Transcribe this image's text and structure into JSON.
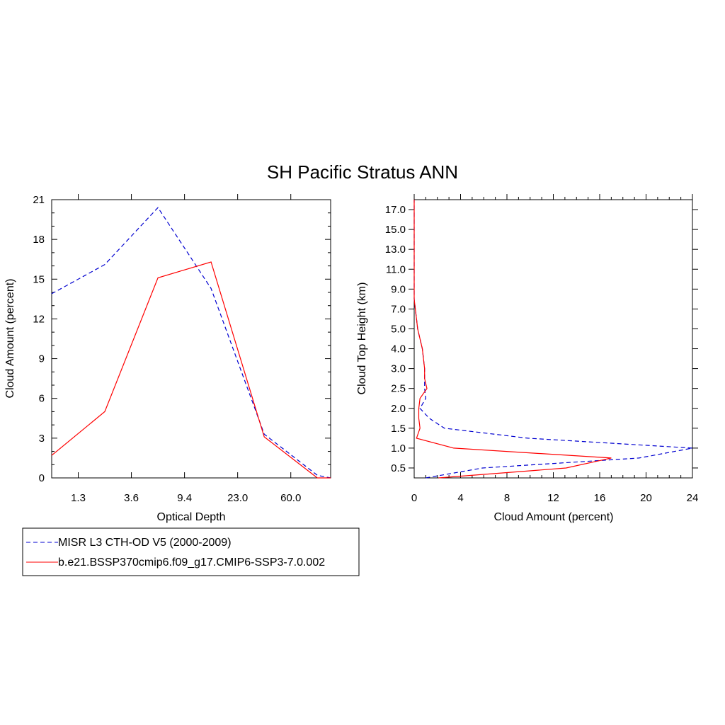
{
  "title": "SH Pacific Stratus ANN",
  "colors": {
    "obs": "#0000d0",
    "model": "#ff0000",
    "axis": "#000000"
  },
  "legend": {
    "placement": "bottom-left",
    "entries": [
      {
        "label": "MISR L3 CTH-OD V5 (2000-2009)",
        "style": "dashed",
        "color": "#0000d0"
      },
      {
        "label": "b.e21.BSSP370cmip6.f09_g17.CMIP6-SSP3-7.0.002",
        "style": "solid",
        "color": "#ff0000"
      }
    ]
  },
  "chart_data": [
    {
      "type": "line",
      "xlabel": "Optical Depth",
      "ylabel": "Cloud Amount (percent)",
      "xlim": [
        0,
        5.25
      ],
      "ylim": [
        0,
        21
      ],
      "x_tick_positions": [
        0.5,
        1.5,
        2.5,
        3.5,
        4.5
      ],
      "x_tick_labels": [
        "1.3",
        "3.6",
        "9.4",
        "23.0",
        "60.0"
      ],
      "y_ticks": [
        0,
        3,
        6,
        9,
        12,
        15,
        18,
        21
      ],
      "x_bins": [
        0,
        1,
        2,
        3,
        4,
        5,
        5.25
      ],
      "series": [
        {
          "name": "MISR L3 CTH-OD V5 (2000-2009)",
          "style": "dashed",
          "color": "#0000d0",
          "values": [
            13.9,
            16.1,
            20.4,
            14.3,
            3.3,
            0.2,
            0.0
          ]
        },
        {
          "name": "b.e21.BSSP370cmip6.f09_g17.CMIP6-SSP3-7.0.002",
          "style": "solid",
          "color": "#ff0000",
          "values": [
            1.7,
            5.0,
            15.1,
            16.3,
            3.1,
            0.0,
            0.0
          ]
        }
      ]
    },
    {
      "type": "line",
      "orientation": "horizontal",
      "xlabel": "Cloud Amount (percent)",
      "ylabel": "Cloud Top Height (km)",
      "xlim": [
        0,
        24
      ],
      "ylim": [
        0,
        14
      ],
      "x_ticks": [
        0,
        4,
        8,
        12,
        16,
        20,
        24
      ],
      "y_tick_positions": [
        0.5,
        1.5,
        2.5,
        3.5,
        4.5,
        5.5,
        6.5,
        7.5,
        8.5,
        9.5,
        10.5,
        11.5,
        12.5,
        13.5
      ],
      "y_tick_labels": [
        "0.5",
        "1.0",
        "1.5",
        "2.0",
        "2.5",
        "3.0",
        "4.0",
        "5.0",
        "7.0",
        "9.0",
        "11.0",
        "13.0",
        "15.0",
        "17.0"
      ],
      "height_bins": [
        0,
        0.5,
        1,
        1.5,
        2,
        2.5,
        3,
        3.5,
        4,
        4.5,
        5,
        5.5,
        6,
        6.5,
        7,
        7.5,
        8,
        8.5,
        9,
        9.5,
        10,
        10.5,
        11,
        11.5,
        12,
        12.5,
        13,
        13.5,
        14
      ],
      "series": [
        {
          "name": "MISR L3 CTH-OD V5 (2000-2009)",
          "style": "dashed",
          "color": "#0000d0",
          "values": [
            1.0,
            5.9,
            19.4,
            24.0,
            9.8,
            2.6,
            1.3,
            0.5,
            1.0,
            0.9,
            0.9,
            0.9,
            0.8,
            0.7,
            0.5,
            0.3,
            0.2,
            0.1,
            0.0,
            0.0,
            0.0,
            0.0,
            0.0,
            0.0,
            0.0,
            0.0,
            0.0,
            0.0,
            0.0
          ]
        },
        {
          "name": "b.e21.BSSP370cmip6.f09_g17.CMIP6-SSP3-7.0.002",
          "style": "solid",
          "color": "#ff0000",
          "values": [
            2.1,
            13.1,
            17.0,
            3.4,
            0.2,
            0.5,
            0.4,
            0.4,
            0.5,
            1.1,
            0.9,
            0.9,
            0.8,
            0.7,
            0.5,
            0.3,
            0.2,
            0.1,
            0.0,
            0.0,
            0.0,
            0.0,
            0.0,
            0.0,
            0.0,
            0.0,
            0.0,
            0.0,
            0.0
          ]
        }
      ]
    }
  ]
}
